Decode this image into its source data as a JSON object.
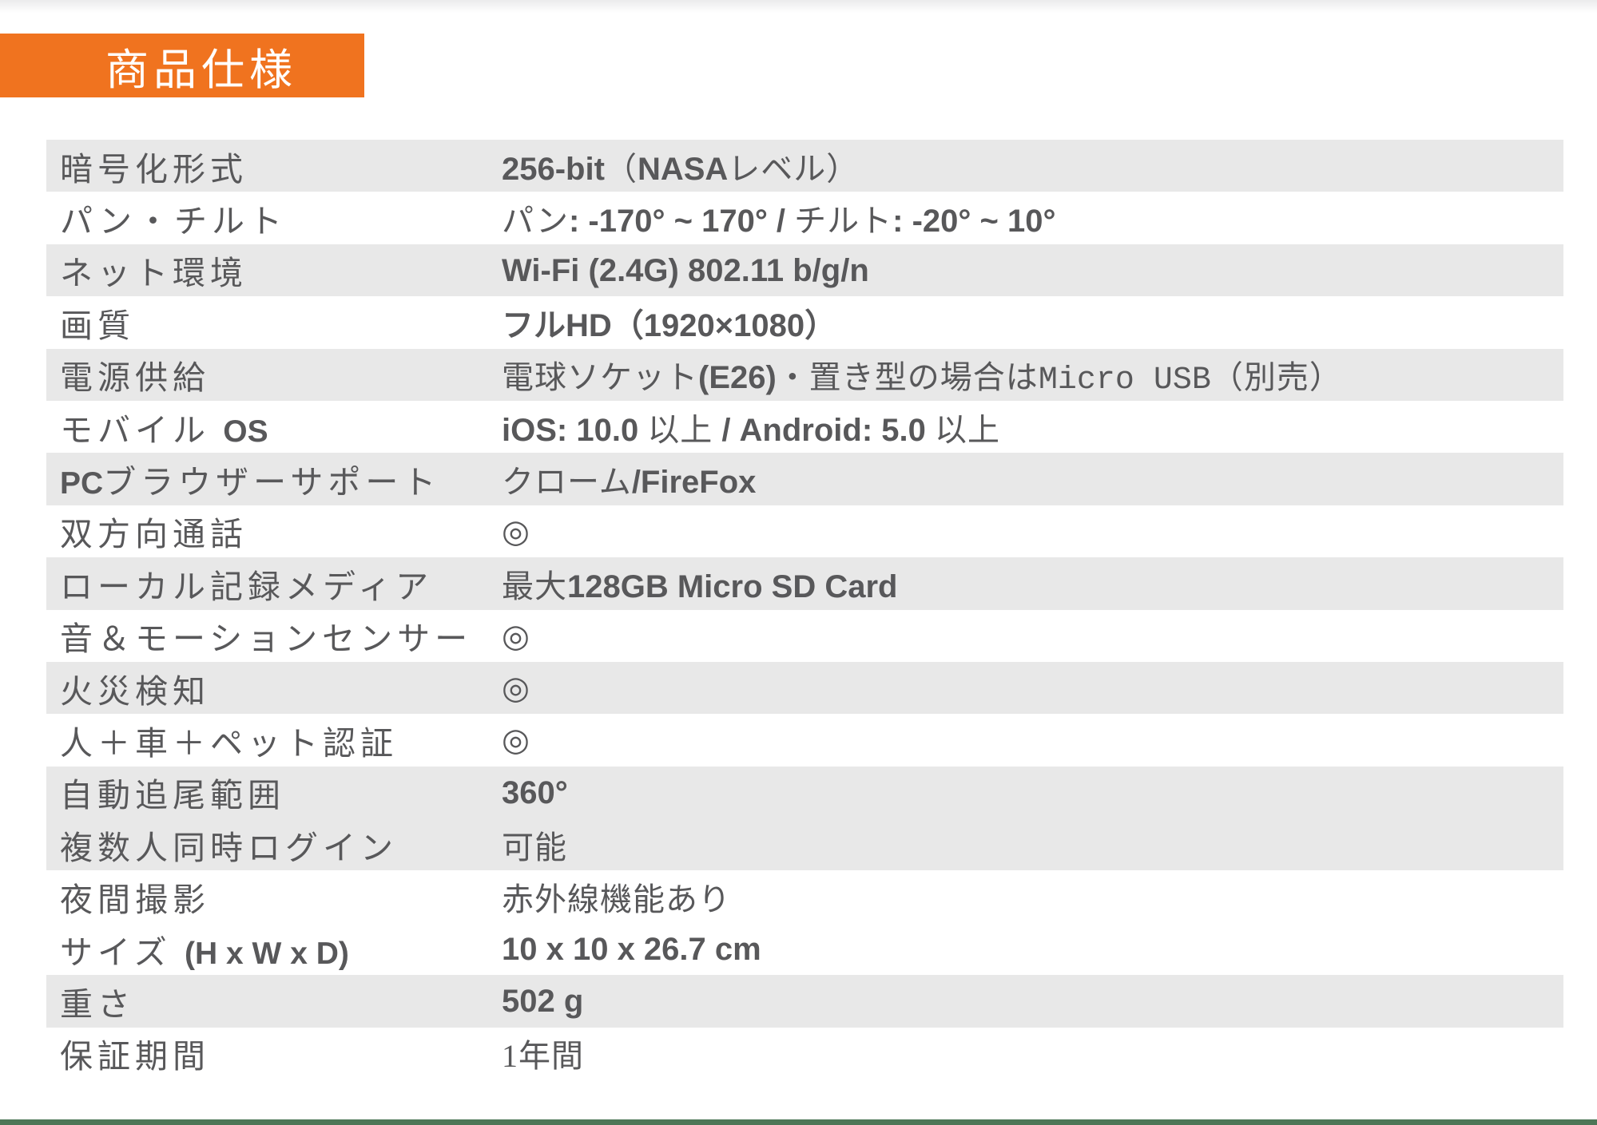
{
  "page": {
    "title_badge": "商品仕様",
    "colors": {
      "accent_orange": "#f0731f",
      "row_shade_gray": "#e8e8e8",
      "footer_green": "#4d7757",
      "text_gray": "#58585a"
    }
  },
  "table": {
    "rows": [
      {
        "shaded": true,
        "label": [
          {
            "t": "暗号化形式",
            "s": "r"
          }
        ],
        "value": [
          {
            "t": "256-bit",
            "s": "b"
          },
          {
            "t": "（",
            "s": "r"
          },
          {
            "t": "NASA",
            "s": "b"
          },
          {
            "t": "レベル）",
            "s": "r"
          }
        ]
      },
      {
        "shaded": false,
        "label": [
          {
            "t": "パン・チルト",
            "s": "r"
          }
        ],
        "value": [
          {
            "t": "パン",
            "s": "r"
          },
          {
            "t": ": -170° ~ 170° / ",
            "s": "b"
          },
          {
            "t": "チルト",
            "s": "r"
          },
          {
            "t": ": -20° ~ 10°",
            "s": "b"
          }
        ]
      },
      {
        "shaded": true,
        "label": [
          {
            "t": "ネット環境",
            "s": "r"
          }
        ],
        "value": [
          {
            "t": "Wi-Fi (2.4G) 802.11 b/g/n",
            "s": "b"
          }
        ]
      },
      {
        "shaded": false,
        "label": [
          {
            "t": "画質",
            "s": "r"
          }
        ],
        "value": [
          {
            "t": "フルHD（1920×1080）",
            "s": "b"
          }
        ]
      },
      {
        "shaded": true,
        "label": [
          {
            "t": "電源供給",
            "s": "r"
          }
        ],
        "value": [
          {
            "t": "電球ソケット",
            "s": "r"
          },
          {
            "t": "(E26)",
            "s": "b"
          },
          {
            "t": "・置き型の場合は",
            "s": "r"
          },
          {
            "t": "Micro USB",
            "s": "m"
          },
          {
            "t": "（別売）",
            "s": "r"
          }
        ]
      },
      {
        "shaded": false,
        "label": [
          {
            "t": "モバイル ",
            "s": "r"
          },
          {
            "t": "OS",
            "s": "b"
          }
        ],
        "value": [
          {
            "t": "iOS: 10.0 ",
            "s": "b"
          },
          {
            "t": "以上 ",
            "s": "r"
          },
          {
            "t": "/ Android: 5.0 ",
            "s": "b"
          },
          {
            "t": "以上",
            "s": "r"
          }
        ]
      },
      {
        "shaded": true,
        "label": [
          {
            "t": "PC",
            "s": "b"
          },
          {
            "t": "ブラウザーサポート",
            "s": "r"
          }
        ],
        "value": [
          {
            "t": "クローム",
            "s": "r"
          },
          {
            "t": "/FireFox",
            "s": "b"
          }
        ]
      },
      {
        "shaded": false,
        "label": [
          {
            "t": "双方向通話",
            "s": "r"
          }
        ],
        "value": [
          {
            "t": "◎",
            "s": "r"
          }
        ]
      },
      {
        "shaded": true,
        "label": [
          {
            "t": "ローカル記録メディア",
            "s": "r"
          }
        ],
        "value": [
          {
            "t": "最大",
            "s": "r"
          },
          {
            "t": "128GB Micro SD Card",
            "s": "b"
          }
        ]
      },
      {
        "shaded": false,
        "label": [
          {
            "t": "音＆モーションセンサー",
            "s": "r"
          }
        ],
        "value": [
          {
            "t": "◎",
            "s": "r"
          }
        ]
      },
      {
        "shaded": true,
        "label": [
          {
            "t": "火災検知",
            "s": "r"
          }
        ],
        "value": [
          {
            "t": "◎",
            "s": "r"
          }
        ]
      },
      {
        "shaded": false,
        "label": [
          {
            "t": "人＋車＋ペット認証",
            "s": "r"
          }
        ],
        "value": [
          {
            "t": "◎",
            "s": "r"
          }
        ]
      },
      {
        "shaded": true,
        "label": [
          {
            "t": "自動追尾範囲",
            "s": "r"
          }
        ],
        "value": [
          {
            "t": "360°",
            "s": "b"
          }
        ]
      },
      {
        "shaded": true,
        "label": [
          {
            "t": "複数人同時ログイン",
            "s": "r"
          }
        ],
        "value": [
          {
            "t": "可能",
            "s": "r"
          }
        ]
      },
      {
        "shaded": false,
        "label": [
          {
            "t": "夜間撮影",
            "s": "r"
          }
        ],
        "value": [
          {
            "t": "赤外線機能あり",
            "s": "r"
          }
        ]
      },
      {
        "shaded": false,
        "label": [
          {
            "t": "サイズ ",
            "s": "r"
          },
          {
            "t": "(H x W x D)",
            "s": "b"
          }
        ],
        "value": [
          {
            "t": "10 x 10 x 26.7 cm",
            "s": "b"
          }
        ]
      },
      {
        "shaded": true,
        "label": [
          {
            "t": "重さ",
            "s": "r"
          }
        ],
        "value": [
          {
            "t": "502 g",
            "s": "b"
          }
        ]
      },
      {
        "shaded": false,
        "label": [
          {
            "t": "保証期間",
            "s": "r"
          }
        ],
        "value": [
          {
            "t": "1年間",
            "s": "r"
          }
        ]
      }
    ]
  }
}
